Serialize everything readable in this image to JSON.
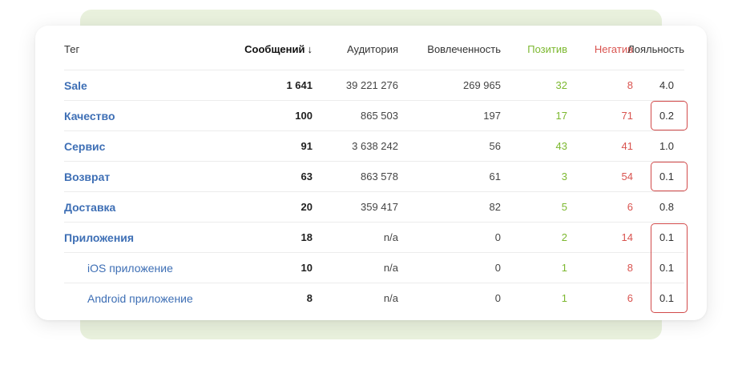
{
  "header": {
    "tag": "Тег",
    "messages": "Сообщений",
    "audience": "Аудитория",
    "engagement": "Вовлеченность",
    "positive": "Позитив",
    "negative": "Негатив",
    "loyalty": "Лояльность",
    "sort_icon": "↓"
  },
  "rows": [
    {
      "tag": "Sale",
      "messages": "1 641",
      "audience": "39 221 276",
      "engagement": "269 965",
      "positive": "32",
      "negative": "8",
      "loyalty": "4.0"
    },
    {
      "tag": "Качество",
      "messages": "100",
      "audience": "865 503",
      "engagement": "197",
      "positive": "17",
      "negative": "71",
      "loyalty": "0.2"
    },
    {
      "tag": "Сервис",
      "messages": "91",
      "audience": "3 638 242",
      "engagement": "56",
      "positive": "43",
      "negative": "41",
      "loyalty": "1.0"
    },
    {
      "tag": "Возврат",
      "messages": "63",
      "audience": "863 578",
      "engagement": "61",
      "positive": "3",
      "negative": "54",
      "loyalty": "0.1"
    },
    {
      "tag": "Доставка",
      "messages": "20",
      "audience": "359 417",
      "engagement": "82",
      "positive": "5",
      "negative": "6",
      "loyalty": "0.8"
    },
    {
      "tag": "Приложения",
      "messages": "18",
      "audience": "n/a",
      "engagement": "0",
      "positive": "2",
      "negative": "14",
      "loyalty": "0.1"
    },
    {
      "tag": "iOS приложение",
      "messages": "10",
      "audience": "n/a",
      "engagement": "0",
      "positive": "1",
      "negative": "8",
      "loyalty": "0.1"
    },
    {
      "tag": "Android приложение",
      "messages": "8",
      "audience": "n/a",
      "engagement": "0",
      "positive": "1",
      "negative": "6",
      "loyalty": "0.1"
    }
  ],
  "colors": {
    "tag_link": "#3e6fb5",
    "positive": "#7cb82f",
    "negative": "#d9534f",
    "highlight_border": "#d24a4a",
    "back_card": "#e9f1dd"
  }
}
